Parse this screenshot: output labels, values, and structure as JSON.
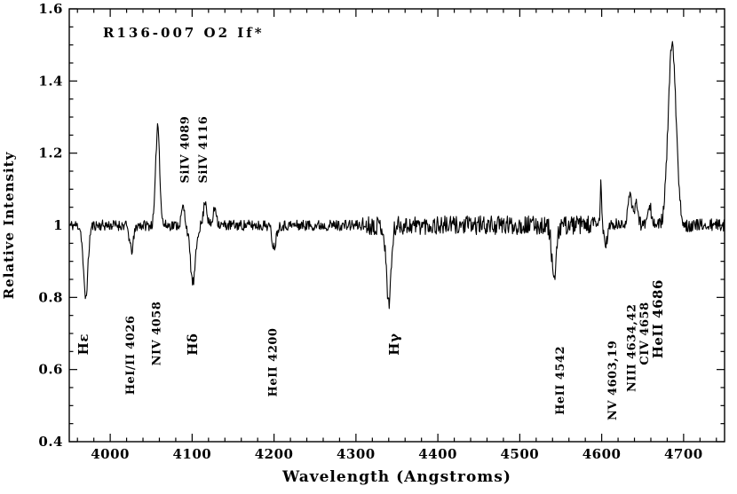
{
  "chart_data": {
    "type": "line",
    "title": "R136-007 O2 If*",
    "xlabel": "Wavelength (Angstroms)",
    "ylabel": "Relative Intensity",
    "xlim": [
      3950,
      4750
    ],
    "ylim": [
      0.4,
      1.6
    ],
    "continuum_level": 1.0,
    "line_color": "#000000",
    "background_color": "#ffffff",
    "legend": "none",
    "grid": false,
    "x_ticks": {
      "values": [
        4000,
        4100,
        4200,
        4300,
        4400,
        4500,
        4600,
        4700
      ],
      "labels": [
        "4000",
        "4100",
        "4200",
        "4300",
        "4400",
        "4500",
        "4600",
        "4700"
      ],
      "minor_step": 20
    },
    "y_ticks": {
      "values": [
        0.4,
        0.6,
        0.8,
        1.0,
        1.2,
        1.4,
        1.6
      ],
      "labels": [
        "0.4",
        "0.6",
        "0.8",
        "1",
        "1.2",
        "1.4",
        "1.6"
      ],
      "minor_step": 0.05
    },
    "features": [
      {
        "name": "H-epsilon absorption",
        "wavelength": 3970,
        "amplitude": -0.2,
        "sigma": 2.8
      },
      {
        "name": "HeI/II 4026 absorption",
        "wavelength": 4026,
        "amplitude": -0.07,
        "sigma": 2.5
      },
      {
        "name": "NIV 4058 emission",
        "wavelength": 4058,
        "amplitude": 0.28,
        "sigma": 2.4
      },
      {
        "name": "SiIV 4089 emission",
        "wavelength": 4089,
        "amplitude": 0.05,
        "sigma": 2.0
      },
      {
        "name": "H-delta absorption",
        "wavelength": 4101,
        "amplitude": -0.16,
        "sigma": 3.2
      },
      {
        "name": "SiIV 4116 emission",
        "wavelength": 4116,
        "amplitude": 0.07,
        "sigma": 2.0
      },
      {
        "name": "emission bump 4128",
        "wavelength": 4128,
        "amplitude": 0.05,
        "sigma": 2.0
      },
      {
        "name": "HeII 4200 absorption",
        "wavelength": 4200,
        "amplitude": -0.06,
        "sigma": 2.5
      },
      {
        "name": "H-gamma absorption",
        "wavelength": 4340,
        "amplitude": -0.21,
        "sigma": 3.0
      },
      {
        "name": "HeII 4542 absorption",
        "wavelength": 4542,
        "amplitude": -0.15,
        "sigma": 2.8
      },
      {
        "name": "narrow spike 4600",
        "wavelength": 4599,
        "amplitude": 0.12,
        "sigma": 0.9
      },
      {
        "name": "NV 4603,19 absorption",
        "wavelength": 4605,
        "amplitude": -0.05,
        "sigma": 2.2
      },
      {
        "name": "NIII 4634 emission",
        "wavelength": 4634,
        "amplitude": 0.08,
        "sigma": 2.5
      },
      {
        "name": "NIII 4642 emission",
        "wavelength": 4642,
        "amplitude": 0.06,
        "sigma": 2.5
      },
      {
        "name": "CIV 4658 emission",
        "wavelength": 4658,
        "amplitude": 0.06,
        "sigma": 2.5
      },
      {
        "name": "HeII 4686 emission",
        "wavelength": 4686,
        "amplitude": 0.5,
        "sigma": 4.8
      }
    ],
    "noise_regions": [
      {
        "from": 3950,
        "to": 4308,
        "amp": 0.015
      },
      {
        "from": 4308,
        "to": 4600,
        "amp": 0.026
      },
      {
        "from": 4600,
        "to": 4750,
        "amp": 0.018
      }
    ],
    "labels": [
      {
        "text": "Hε",
        "x": 3973,
        "y": 0.67,
        "bold": true
      },
      {
        "text": "HeI/II 4026",
        "x": 4029,
        "y": 0.64,
        "bold": false
      },
      {
        "text": "NIV 4058",
        "x": 4061,
        "y": 0.7,
        "bold": false
      },
      {
        "text": "Hδ",
        "x": 4106,
        "y": 0.67,
        "bold": true
      },
      {
        "text": "SiIV 4089",
        "x": 4096,
        "y": 1.21,
        "bold": false
      },
      {
        "text": "SiIV 4116",
        "x": 4118,
        "y": 1.21,
        "bold": false
      },
      {
        "text": "HeII 4200",
        "x": 4203,
        "y": 0.62,
        "bold": false
      },
      {
        "text": "Hγ",
        "x": 4352,
        "y": 0.67,
        "bold": true
      },
      {
        "text": "HeII 4542",
        "x": 4554,
        "y": 0.57,
        "bold": false
      },
      {
        "text": "NV 4603,19",
        "x": 4618,
        "y": 0.57,
        "bold": false
      },
      {
        "text": "NIII 4634,42",
        "x": 4641,
        "y": 0.66,
        "bold": false
      },
      {
        "text": "CIV 4658",
        "x": 4657,
        "y": 0.7,
        "bold": false
      },
      {
        "text": "HeII 4686",
        "x": 4674,
        "y": 0.74,
        "bold": true
      }
    ]
  }
}
